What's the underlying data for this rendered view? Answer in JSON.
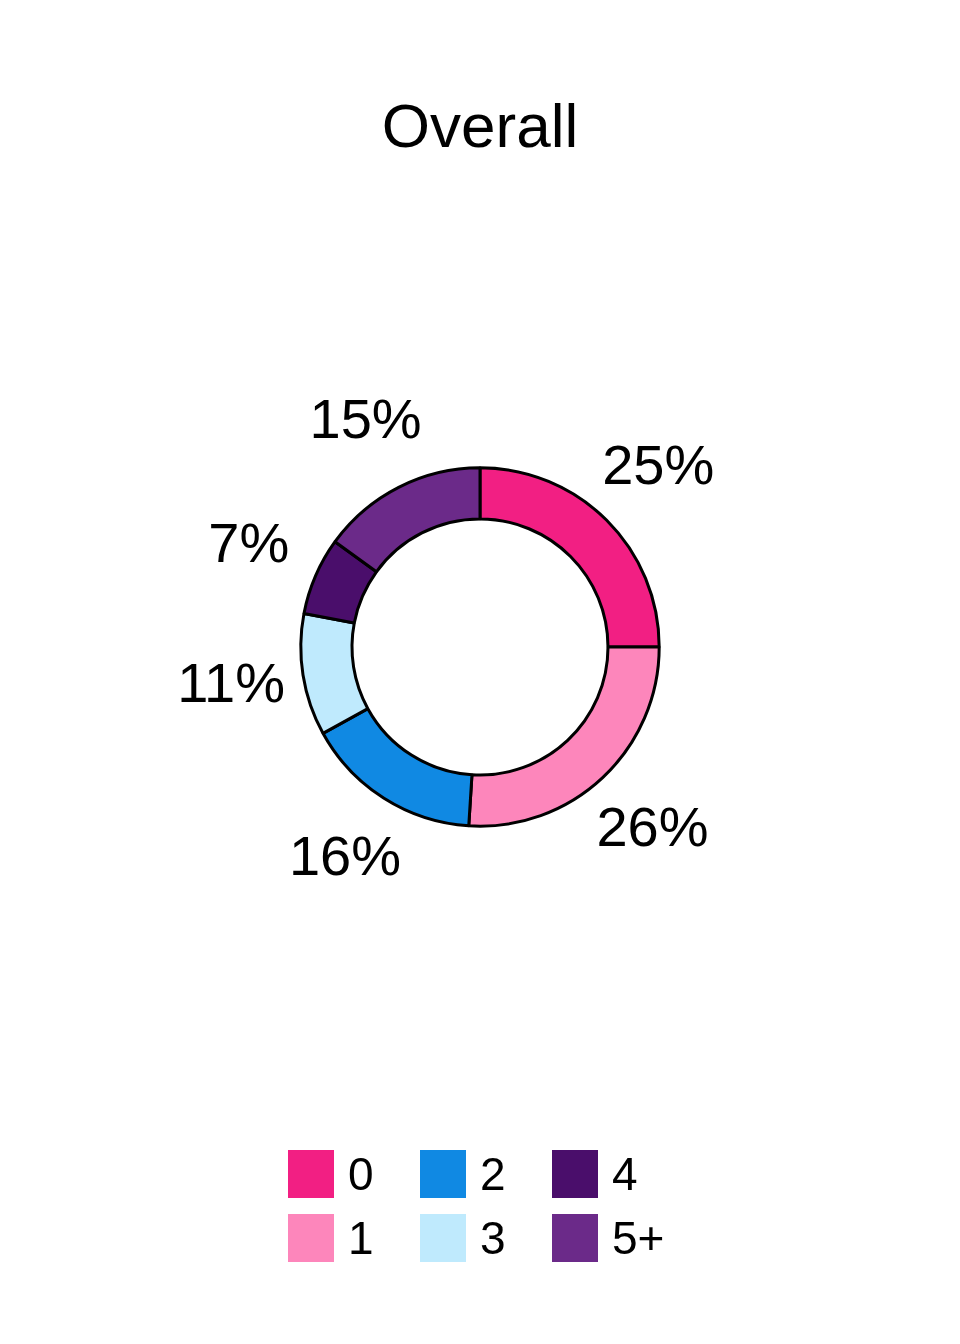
{
  "chart_data": {
    "type": "donut",
    "title": "Overall",
    "categories": [
      "0",
      "1",
      "2",
      "3",
      "4",
      "5+"
    ],
    "values": [
      25,
      26,
      16,
      11,
      7,
      15
    ],
    "colors": [
      "#f21f83",
      "#fd86bb",
      "#1089e3",
      "#bfeafd",
      "#4a0e6b",
      "#6b2a89"
    ],
    "value_labels": [
      "25%",
      "26%",
      "16%",
      "11%",
      "7%",
      "15%"
    ],
    "legend": "bottom"
  }
}
